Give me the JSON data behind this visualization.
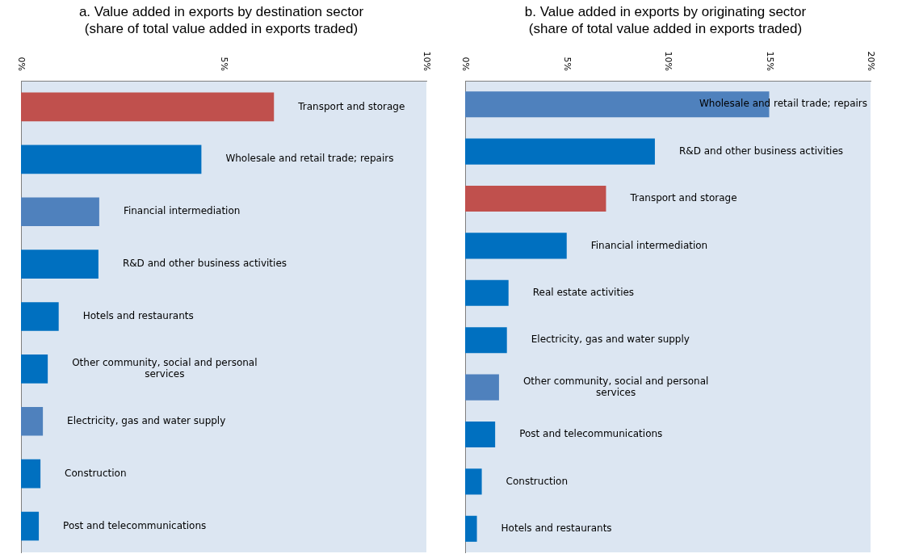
{
  "chart_data": [
    {
      "type": "bar",
      "orientation": "horizontal",
      "title": "a. Value added in exports by destination sector",
      "subtitle": "(share of total value added in exports traded)",
      "categories": [
        "Transport and storage",
        "Wholesale and retail trade; repairs",
        "Financial intermediation",
        "R&D and other business activities",
        "Hotels and restaurants",
        "Other community, social and personal services",
        "Electricity, gas and water supply",
        "Construction",
        "Post and telecommunications"
      ],
      "values": [
        6.24,
        4.45,
        1.93,
        1.91,
        0.93,
        0.66,
        0.54,
        0.48,
        0.44
      ],
      "colors": [
        "#c0504d",
        "#0070c0",
        "#4f81bd",
        "#0070c0",
        "#0070c0",
        "#0070c0",
        "#4f81bd",
        "#0070c0",
        "#0070c0"
      ],
      "xlim": [
        0,
        10
      ],
      "xticks": [
        {
          "value": 0,
          "label": "0%"
        },
        {
          "value": 5,
          "label": "5%"
        },
        {
          "value": 10,
          "label": "10%"
        }
      ],
      "grid": false,
      "legend": false,
      "tick_labels": "x"
    },
    {
      "type": "bar",
      "orientation": "horizontal",
      "title": "b. Value added in exports by originating sector",
      "subtitle": "(share of total value added in exports traded)",
      "categories": [
        "Wholesale and retail trade; repairs",
        "R&D and other business activities",
        "Transport and storage",
        "Financial intermediation",
        "Real estate activities",
        "Electricity, gas and water supply",
        "Other community, social and personal services",
        "Post and telecommunications",
        "Construction",
        "Hotels and restaurants"
      ],
      "values": [
        15.0,
        9.36,
        6.95,
        5.01,
        2.14,
        2.06,
        1.67,
        1.48,
        0.82,
        0.58
      ],
      "colors": [
        "#4f81bd",
        "#0070c0",
        "#c0504d",
        "#0070c0",
        "#0070c0",
        "#0070c0",
        "#4f81bd",
        "#0070c0",
        "#0070c0",
        "#0070c0"
      ],
      "xlim": [
        0,
        20
      ],
      "xticks": [
        {
          "value": 0,
          "label": "0%"
        },
        {
          "value": 5,
          "label": "5%"
        },
        {
          "value": 10,
          "label": "10%"
        },
        {
          "value": 15,
          "label": "15%"
        },
        {
          "value": 20,
          "label": "20%"
        }
      ],
      "grid": false,
      "legend": false,
      "tick_labels": "x"
    }
  ]
}
